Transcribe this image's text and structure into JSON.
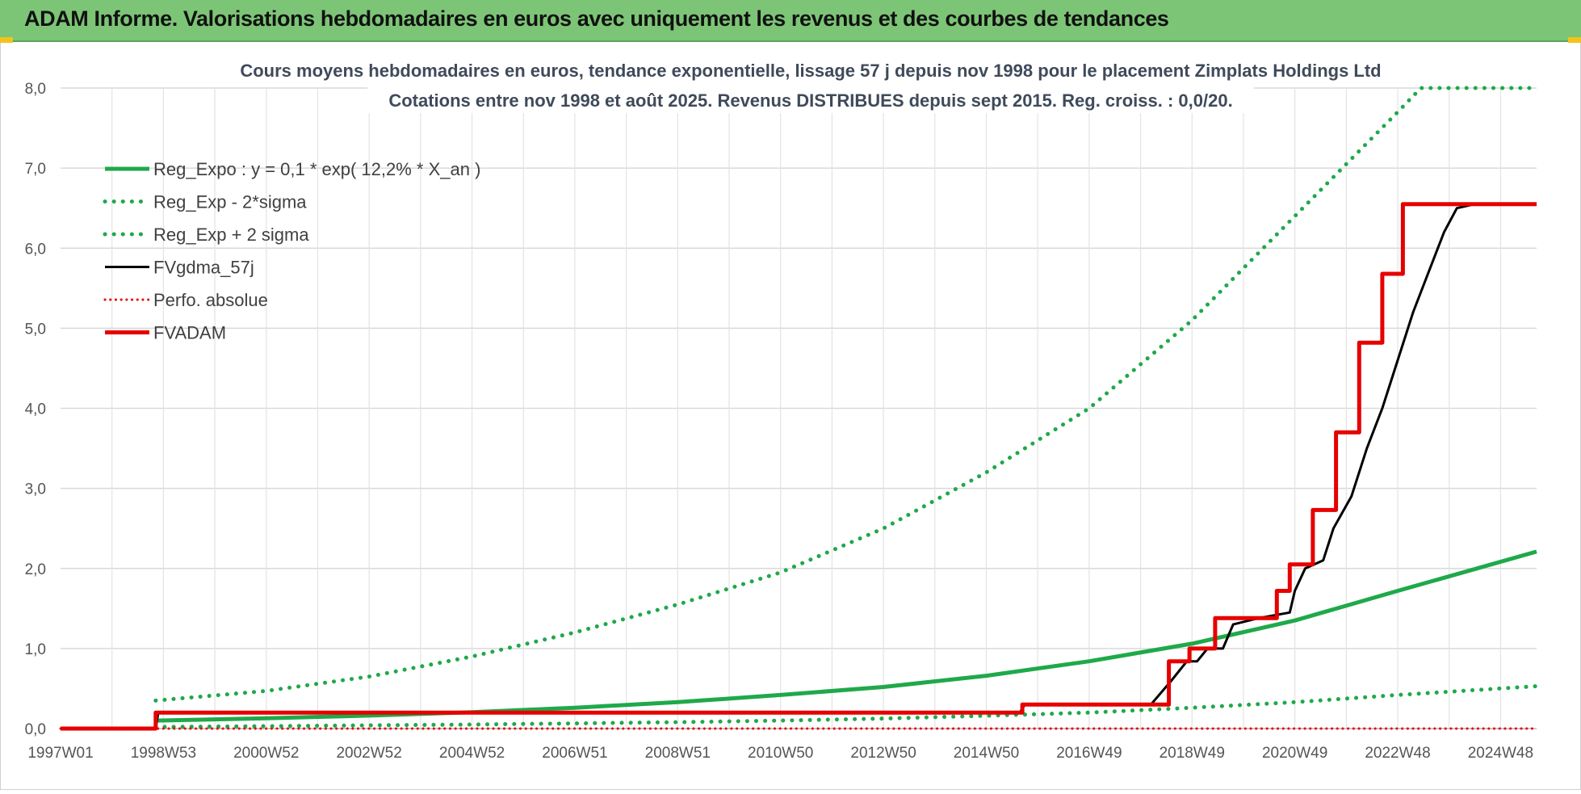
{
  "header": {
    "title": "ADAM Informe. Valorisations hebdomadaires en euros avec uniquement les revenus et des courbes de tendances"
  },
  "chart_data": {
    "type": "line",
    "title_line1": "Cours moyens hebdomadaires en euros, tendance exponentielle, lissage 57 j depuis nov 1998 pour le placement Zimplats Holdings Ltd",
    "title_line2": "Cotations entre nov 1998 et août 2025. Revenus DISTRIBUES depuis sept 2015. Reg. croiss. : 0,0/20.",
    "x_tick_labels": [
      "1997W01",
      "1998W53",
      "2000W52",
      "2002W52",
      "2004W52",
      "2006W51",
      "2008W51",
      "2010W50",
      "2012W50",
      "2014W50",
      "2016W49",
      "2018W49",
      "2020W49",
      "2022W48",
      "2024W48"
    ],
    "x_tick_years": [
      1997.0,
      1999.0,
      2001.0,
      2003.0,
      2005.0,
      2007.0,
      2009.0,
      2011.0,
      2013.0,
      2015.0,
      2017.0,
      2019.0,
      2021.0,
      2023.0,
      2025.0
    ],
    "xlim": [
      1997.0,
      2025.7
    ],
    "ylim": [
      0,
      8
    ],
    "y_ticks": [
      "0,0",
      "1,0",
      "2,0",
      "3,0",
      "4,0",
      "5,0",
      "6,0",
      "7,0",
      "8,0"
    ],
    "grid": true,
    "legend_position": "top-left",
    "series": [
      {
        "name": "Reg_Expo : y = 0,1 * exp( 12,2% *  X_an )",
        "color": "#1fa94a",
        "style": "solid",
        "width": 5,
        "points": [
          [
            1998.85,
            0.1
          ],
          [
            2001,
            0.128
          ],
          [
            2003,
            0.162
          ],
          [
            2005,
            0.205
          ],
          [
            2007,
            0.26
          ],
          [
            2009,
            0.33
          ],
          [
            2011,
            0.42
          ],
          [
            2013,
            0.52
          ],
          [
            2015,
            0.66
          ],
          [
            2017,
            0.84
          ],
          [
            2019,
            1.06
          ],
          [
            2021,
            1.35
          ],
          [
            2023,
            1.72
          ],
          [
            2025.7,
            2.21
          ]
        ]
      },
      {
        "name": "Reg_Exp - 2*sigma",
        "color": "#1fa94a",
        "style": "dotted",
        "width": 5,
        "points": [
          [
            1998.85,
            0.02
          ],
          [
            2001,
            0.03
          ],
          [
            2003,
            0.04
          ],
          [
            2005,
            0.05
          ],
          [
            2007,
            0.065
          ],
          [
            2009,
            0.08
          ],
          [
            2011,
            0.1
          ],
          [
            2013,
            0.125
          ],
          [
            2015,
            0.16
          ],
          [
            2017,
            0.2
          ],
          [
            2019,
            0.26
          ],
          [
            2021,
            0.33
          ],
          [
            2023,
            0.42
          ],
          [
            2025.7,
            0.53
          ]
        ]
      },
      {
        "name": "Reg_Exp + 2 sigma",
        "color": "#1fa94a",
        "style": "dotted",
        "width": 5,
        "points": [
          [
            1998.85,
            0.35
          ],
          [
            2001,
            0.47
          ],
          [
            2003,
            0.65
          ],
          [
            2005,
            0.9
          ],
          [
            2007,
            1.2
          ],
          [
            2009,
            1.55
          ],
          [
            2011,
            1.95
          ],
          [
            2013,
            2.5
          ],
          [
            2015,
            3.2
          ],
          [
            2017,
            4.0
          ],
          [
            2019,
            5.1
          ],
          [
            2021,
            6.4
          ],
          [
            2023,
            7.7
          ],
          [
            2023.45,
            8.0
          ],
          [
            2025.7,
            8.0
          ]
        ]
      },
      {
        "name": "FVgdma_57j",
        "color": "#000000",
        "style": "solid",
        "width": 3,
        "points": [
          [
            1997.0,
            0
          ],
          [
            1998.85,
            0
          ],
          [
            1998.9,
            0.2
          ],
          [
            2015.65,
            0.2
          ],
          [
            2015.75,
            0.3
          ],
          [
            2018.2,
            0.3
          ],
          [
            2018.6,
            0.6
          ],
          [
            2018.9,
            0.84
          ],
          [
            2019.1,
            0.84
          ],
          [
            2019.3,
            1.0
          ],
          [
            2019.6,
            1.0
          ],
          [
            2019.8,
            1.3
          ],
          [
            2020.3,
            1.38
          ],
          [
            2020.9,
            1.45
          ],
          [
            2021.0,
            1.72
          ],
          [
            2021.2,
            2.0
          ],
          [
            2021.55,
            2.1
          ],
          [
            2021.75,
            2.5
          ],
          [
            2022.1,
            2.9
          ],
          [
            2022.4,
            3.5
          ],
          [
            2022.7,
            4.0
          ],
          [
            2023.0,
            4.6
          ],
          [
            2023.3,
            5.2
          ],
          [
            2023.6,
            5.7
          ],
          [
            2023.9,
            6.2
          ],
          [
            2024.15,
            6.5
          ],
          [
            2024.5,
            6.55
          ],
          [
            2025.7,
            6.55
          ]
        ]
      },
      {
        "name": "Perfo. absolue",
        "color": "#e60000",
        "style": "dotted",
        "width": 3,
        "points": [
          [
            1997.0,
            0
          ],
          [
            2025.7,
            0
          ]
        ]
      },
      {
        "name": "FVADAM",
        "color": "#e60000",
        "style": "solid",
        "width": 5,
        "points": [
          [
            1997.0,
            0
          ],
          [
            1998.85,
            0
          ],
          [
            1998.85,
            0.2
          ],
          [
            2015.7,
            0.2
          ],
          [
            2015.7,
            0.3
          ],
          [
            2018.55,
            0.3
          ],
          [
            2018.55,
            0.84
          ],
          [
            2018.95,
            0.84
          ],
          [
            2018.95,
            1.0
          ],
          [
            2019.45,
            1.0
          ],
          [
            2019.45,
            1.38
          ],
          [
            2020.65,
            1.38
          ],
          [
            2020.65,
            1.72
          ],
          [
            2020.9,
            1.72
          ],
          [
            2020.9,
            2.05
          ],
          [
            2021.35,
            2.05
          ],
          [
            2021.35,
            2.73
          ],
          [
            2021.8,
            2.73
          ],
          [
            2021.8,
            3.7
          ],
          [
            2022.25,
            3.7
          ],
          [
            2022.25,
            4.82
          ],
          [
            2022.7,
            4.82
          ],
          [
            2022.7,
            5.68
          ],
          [
            2023.1,
            5.68
          ],
          [
            2023.1,
            6.55
          ],
          [
            2025.7,
            6.55
          ]
        ]
      }
    ]
  }
}
